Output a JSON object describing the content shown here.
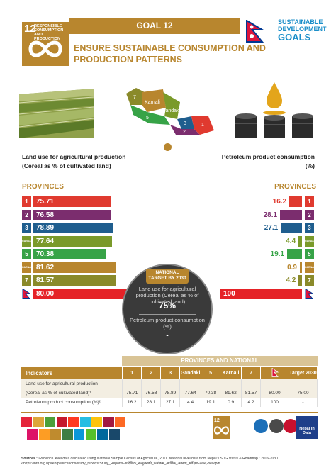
{
  "header": {
    "tile_number": "12",
    "tile_title": "RESPONSIBLE CONSUMPTION AND PRODUCTION",
    "goal_label": "GOAL 12",
    "title": "ENSURE SUSTAINABLE CONSUMPTION AND PRODUCTION PATTERNS",
    "sdg_logo_line1": "SUSTAINABLE",
    "sdg_logo_line2": "DEVELOPMENT",
    "sdg_logo_line3": "GOALS"
  },
  "map_labels": [
    "7",
    "Karnali",
    "Gandaki",
    "5",
    "3",
    "2",
    "1"
  ],
  "left_indicator": {
    "label_line1": "Land use for agricultural production",
    "label_line2": "(Cereal as % of cultivated land)",
    "provinces_heading": "PROVINCES",
    "rows": [
      {
        "tag": "1",
        "value": "75.71",
        "color": "#e03a2f"
      },
      {
        "tag": "2",
        "value": "76.58",
        "color": "#7b2d6e"
      },
      {
        "tag": "3",
        "value": "78.89",
        "color": "#1f5e8e"
      },
      {
        "tag": "GANDAKI",
        "value": "77.64",
        "color": "#7a9a2a"
      },
      {
        "tag": "5",
        "value": "70.38",
        "color": "#37a347"
      },
      {
        "tag": "KARNALI",
        "value": "81.62",
        "color": "#b8862e"
      },
      {
        "tag": "7",
        "value": "81.57",
        "color": "#8a8a2a"
      },
      {
        "tag": "flag",
        "value": "80.00",
        "color": "#e52227"
      }
    ]
  },
  "right_indicator": {
    "label_line1": "Petroleum product consumption",
    "label_line2": "(%)",
    "provinces_heading": "PROVINCES",
    "rows": [
      {
        "tag": "1",
        "value": "16.2",
        "color": "#e03a2f"
      },
      {
        "tag": "2",
        "value": "28.1",
        "color": "#7b2d6e"
      },
      {
        "tag": "3",
        "value": "27.1",
        "color": "#1f5e8e"
      },
      {
        "tag": "GANDAKI",
        "value": "4.4",
        "color": "#7a9a2a"
      },
      {
        "tag": "5",
        "value": "19.1",
        "color": "#37a347"
      },
      {
        "tag": "KARNALI",
        "value": "0.9",
        "color": "#b8862e"
      },
      {
        "tag": "7",
        "value": "4.2",
        "color": "#8a8a2a"
      },
      {
        "tag": "flag",
        "value": "100",
        "color": "#e52227"
      }
    ]
  },
  "target_circle": {
    "heading": "NATIONAL TARGET BY 2030",
    "label1": "Land use for agricultural production (Cereal as % of cultivated land)",
    "value1": "75%",
    "label2": "Petroleum product consumption (%)",
    "value2": "-"
  },
  "table": {
    "title": "PROVINCES AND NATIONAL",
    "headers": [
      "Indicators",
      "1",
      "2",
      "3",
      "Gandaki",
      "5",
      "Karnali",
      "7",
      "",
      "Target 2030"
    ],
    "rows": [
      [
        "Land use for agricultural production",
        "",
        "",
        "",
        "",
        "",
        "",
        "",
        "",
        ""
      ],
      [
        "(Cereal as % of cultivated land)¹",
        "75.71",
        "76.58",
        "78.89",
        "77.64",
        "70.38",
        "81.62",
        "81.57",
        "80.00",
        "75.00"
      ],
      [
        "Petroleum product consumption (%)²",
        "16.2",
        "28.1",
        "27.1",
        "4.4",
        "19.1",
        "0.9",
        "4.2",
        "100",
        "-"
      ]
    ]
  },
  "footer": {
    "nepal_data_label": "Nepal in Data",
    "sources_label": "Sources :",
    "sources_text": "¹Province level data calculated using National Sample Census of Agriculture, 2011. National level data from Nepal's SDG status & Roadmap : 2016-2030",
    "sources_url": "² https://nrb.org.np/red/publications/study_reports/Study_Reports--प्रादेशिक_सन्तुलनको_कार्यक्रम_आर्थिक_अवस्था_सर्वेक्षण-२०७६-new.pdf"
  },
  "sdg_colors": [
    "#e5243b",
    "#dda63a",
    "#4c9f38",
    "#c5192d",
    "#ff3a21",
    "#26bde2",
    "#fcc30b",
    "#a21942",
    "#fd6925",
    "#dd1367",
    "#fd9d24",
    "#bf8b2e",
    "#3f7e44",
    "#0a97d9",
    "#56c02b",
    "#00689d",
    "#19486a"
  ]
}
